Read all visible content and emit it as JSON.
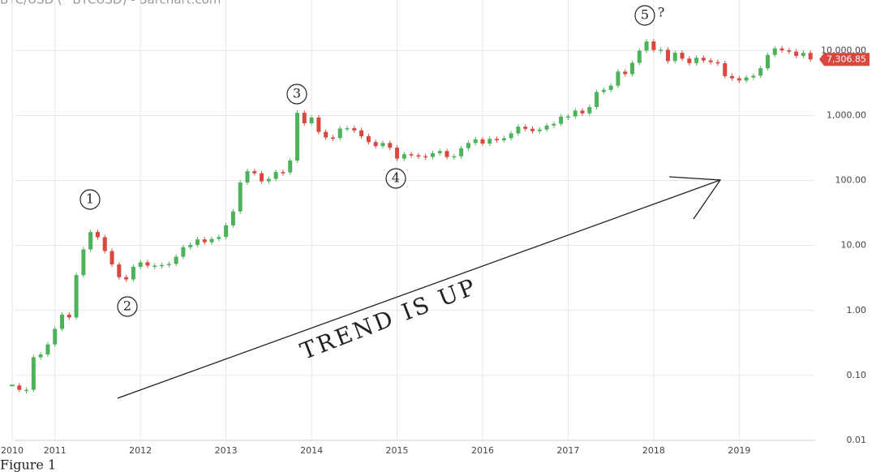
{
  "chart_data": {
    "type": "candlestick",
    "title": "BTC/USD (^BTCUSD) - Barchart.com",
    "x": [
      "2010-07",
      "2010-08",
      "2010-09",
      "2010-10",
      "2010-11",
      "2010-12",
      "2011-01",
      "2011-02",
      "2011-03",
      "2011-04",
      "2011-05",
      "2011-06",
      "2011-07",
      "2011-08",
      "2011-09",
      "2011-10",
      "2011-11",
      "2011-12",
      "2012-01",
      "2012-02",
      "2012-03",
      "2012-04",
      "2012-05",
      "2012-06",
      "2012-07",
      "2012-08",
      "2012-09",
      "2012-10",
      "2012-11",
      "2012-12",
      "2013-01",
      "2013-02",
      "2013-03",
      "2013-04",
      "2013-05",
      "2013-06",
      "2013-07",
      "2013-08",
      "2013-09",
      "2013-10",
      "2013-11",
      "2013-12",
      "2014-01",
      "2014-02",
      "2014-03",
      "2014-04",
      "2014-05",
      "2014-06",
      "2014-07",
      "2014-08",
      "2014-09",
      "2014-10",
      "2014-11",
      "2014-12",
      "2015-01",
      "2015-02",
      "2015-03",
      "2015-04",
      "2015-05",
      "2015-06",
      "2015-07",
      "2015-08",
      "2015-09",
      "2015-10",
      "2015-11",
      "2015-12",
      "2016-01",
      "2016-02",
      "2016-03",
      "2016-04",
      "2016-05",
      "2016-06",
      "2016-07",
      "2016-08",
      "2016-09",
      "2016-10",
      "2016-11",
      "2016-12",
      "2017-01",
      "2017-02",
      "2017-03",
      "2017-04",
      "2017-05",
      "2017-06",
      "2017-07",
      "2017-08",
      "2017-09",
      "2017-10",
      "2017-11",
      "2017-12",
      "2018-01",
      "2018-02",
      "2018-03",
      "2018-04",
      "2018-05",
      "2018-06",
      "2018-07",
      "2018-08",
      "2018-09",
      "2018-10",
      "2018-11",
      "2018-12",
      "2019-01",
      "2019-02",
      "2019-03",
      "2019-04",
      "2019-05",
      "2019-06",
      "2019-07",
      "2019-08",
      "2019-09",
      "2019-10",
      "2019-11"
    ],
    "values": [
      0.07,
      0.06,
      0.06,
      0.19,
      0.21,
      0.3,
      0.52,
      0.86,
      0.78,
      3.5,
      8.7,
      16.1,
      13.4,
      8.2,
      5.1,
      3.25,
      3.0,
      4.7,
      5.5,
      4.9,
      4.9,
      5.0,
      5.2,
      6.7,
      9.4,
      10.2,
      12.4,
      11.2,
      12.6,
      13.5,
      20.4,
      33.4,
      93,
      139,
      129,
      97,
      106,
      135,
      133,
      203,
      1100,
      760,
      930,
      560,
      460,
      450,
      630,
      640,
      590,
      480,
      390,
      338,
      378,
      320,
      217,
      254,
      244,
      236,
      230,
      263,
      284,
      230,
      236,
      314,
      378,
      430,
      370,
      437,
      416,
      448,
      531,
      673,
      624,
      575,
      610,
      700,
      745,
      964,
      970,
      1190,
      1080,
      1350,
      2300,
      2480,
      2880,
      4740,
      4340,
      6470,
      9950,
      13800,
      10200,
      10300,
      6900,
      9240,
      7500,
      6400,
      7730,
      7030,
      6630,
      6370,
      4040,
      3740,
      3460,
      3850,
      4100,
      5350,
      8570,
      10800,
      10080,
      9630,
      8290,
      9200,
      7306.85
    ],
    "up_color": "#4cb35a",
    "down_color": "#d9473f",
    "last_price": {
      "value": 7306.85,
      "label": "7,306.85"
    },
    "log_scale": true,
    "grid": true,
    "xlim": [
      "2010-07",
      "2019-12"
    ],
    "xticks": [
      {
        "value": "2010-07",
        "label": "2010"
      },
      "2011",
      "2012",
      "2013",
      "2014",
      "2015",
      "2016",
      "2017",
      "2018",
      "2019"
    ],
    "ylim": [
      0.01,
      60000
    ],
    "yticks": [
      {
        "value": 0.01,
        "label": "0.01"
      },
      {
        "value": 0.1,
        "label": "0.10"
      },
      {
        "value": 1,
        "label": "1.00"
      },
      {
        "value": 10,
        "label": "10.00"
      },
      {
        "value": 100,
        "label": "100.00"
      },
      {
        "value": 1000,
        "label": "1,000.00"
      },
      {
        "value": 10000,
        "label": "10,000.00"
      }
    ],
    "annotations": [
      "1",
      "2",
      "3",
      "4",
      "5",
      "?",
      "TREND IS UP",
      "Figure 1"
    ]
  }
}
